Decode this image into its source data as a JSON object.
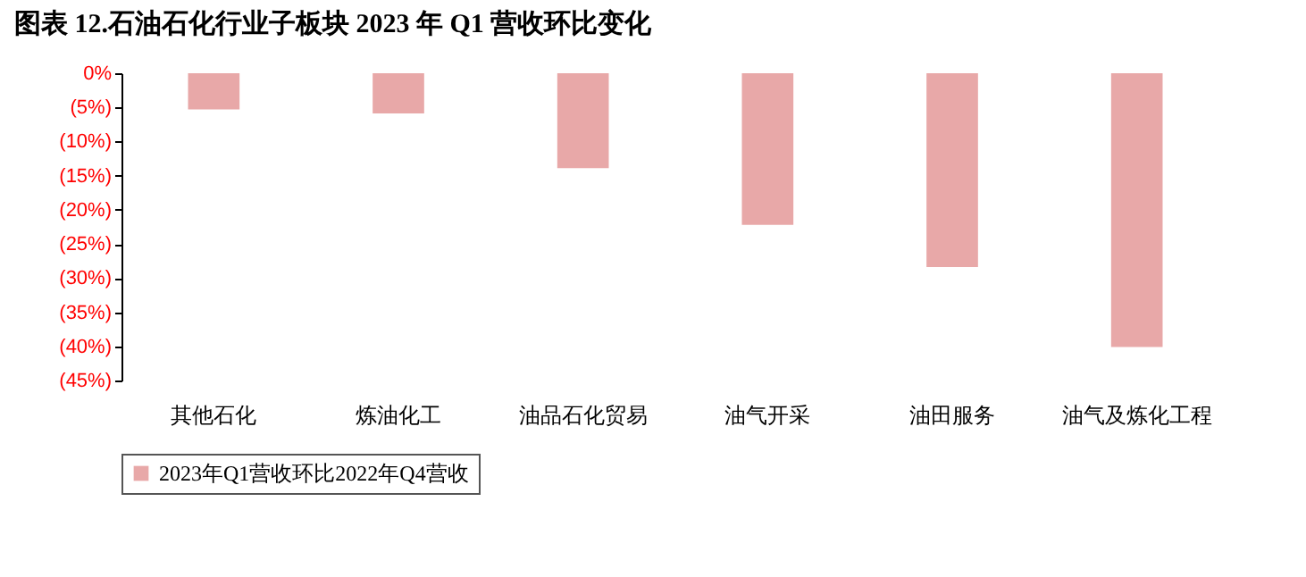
{
  "chart_data": {
    "type": "bar",
    "title": "图表 12.石油石化行业子板块 2023 年 Q1 营收环比变化",
    "categories": [
      "其他石化",
      "炼油化工",
      "油品石化贸易",
      "油气开采",
      "油田服务",
      "油气及炼化工程"
    ],
    "series": [
      {
        "name": "2023年Q1营收环比2022年Q4营收",
        "color": "#e8a8a8",
        "values": [
          -5.3,
          -5.9,
          -13.9,
          -22.2,
          -28.4,
          -40.1
        ]
      }
    ],
    "ylim": [
      -45,
      0
    ],
    "yticks": [
      {
        "value": 0,
        "label": "0%"
      },
      {
        "value": -5,
        "label": "(5%)"
      },
      {
        "value": -10,
        "label": "(10%)"
      },
      {
        "value": -15,
        "label": "(15%)"
      },
      {
        "value": -20,
        "label": "(20%)"
      },
      {
        "value": -25,
        "label": "(25%)"
      },
      {
        "value": -30,
        "label": "(30%)"
      },
      {
        "value": -35,
        "label": "(35%)"
      },
      {
        "value": -40,
        "label": "(40%)"
      },
      {
        "value": -45,
        "label": "(45%)"
      }
    ],
    "legend": "bottom",
    "grid": false
  }
}
